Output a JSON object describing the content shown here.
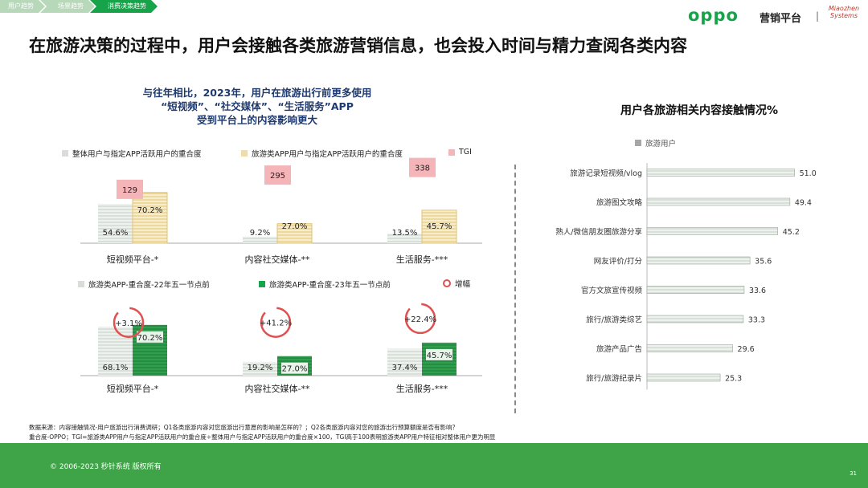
{
  "tabs": [
    "用户趋势",
    "场景趋势",
    "消费决策趋势"
  ],
  "brand": {
    "logo": "oppo",
    "platform": "营销平台",
    "partner": "Miaozhen Systems"
  },
  "title": "在旅游决策的过程中，用户会接触各类旅游营销信息，也会投入时间与精力查阅各类内容",
  "subtitle": [
    "与往年相比，2023年，用户在旅游出行前更多使用",
    "“短视频”、“社交媒体”、“生活服务”APP",
    "受到平台上的内容影响更大"
  ],
  "right_title": "用户各旅游相关内容接触情况%",
  "colors": {
    "green": "#17a34a",
    "tgi": "#f5b5b8",
    "yellow": "#e8c56a",
    "gray": "#bfc9bf",
    "bar_gray": "#a6a6a6",
    "ring": "#e05050"
  },
  "chart_data": [
    {
      "type": "bar",
      "id": "overlap",
      "categories": [
        "短视频平台-*",
        "内容社交媒体-**",
        "生活服务-***"
      ],
      "legend": [
        "整体用户与指定APP活跃用户的重合度",
        "旅游类APP用户与指定APP活跃用户的重合度",
        "TGI"
      ],
      "series": [
        {
          "name": "整体用户与指定APP活跃用户的重合度",
          "values": [
            54.6,
            9.2,
            13.5
          ],
          "labels": [
            "54.6%",
            "9.2%",
            "13.5%"
          ]
        },
        {
          "name": "旅游类APP用户与指定APP活跃用户的重合度",
          "values": [
            70.2,
            27.0,
            45.7
          ],
          "labels": [
            "70.2%",
            "27.0%",
            "45.7%"
          ]
        },
        {
          "name": "TGI",
          "values": [
            129,
            295,
            338
          ],
          "labels": [
            "129",
            "295",
            "338"
          ]
        }
      ]
    },
    {
      "type": "bar",
      "id": "growth",
      "categories": [
        "短视频平台-*",
        "内容社交媒体-**",
        "生活服务-***"
      ],
      "legend": [
        "旅游类APP-重合度-22年五一节点前",
        "旅游类APP-重合度-23年五一节点前",
        "增幅"
      ],
      "series": [
        {
          "name": "旅游类APP-重合度-22年五一节点前",
          "values": [
            68.1,
            19.2,
            37.4
          ],
          "labels": [
            "68.1%",
            "19.2%",
            "37.4%"
          ]
        },
        {
          "name": "旅游类APP-重合度-23年五一节点前",
          "values": [
            70.2,
            27.0,
            45.7
          ],
          "labels": [
            "70.2%",
            "27.0%",
            "45.7%"
          ]
        },
        {
          "name": "增幅",
          "labels": [
            "+3.1%",
            "+41.2%",
            "+22.4%"
          ]
        }
      ]
    },
    {
      "type": "bar",
      "id": "contact",
      "orientation": "horizontal",
      "legend": [
        "旅游用户"
      ],
      "categories": [
        "旅游记录短视频/vlog",
        "旅游图文攻略",
        "熟人/微信朋友圈旅游分享",
        "网友评价/打分",
        "官方文旅宣传视频",
        "旅行/旅游类综艺",
        "旅游产品广告",
        "旅行/旅游纪录片"
      ],
      "values": [
        51.0,
        49.4,
        45.2,
        35.6,
        33.6,
        33.3,
        29.6,
        25.3
      ],
      "labels": [
        "51.0",
        "49.4",
        "45.2",
        "35.6",
        "33.6",
        "33.3",
        "29.6",
        "25.3"
      ]
    }
  ],
  "notes": [
    "数据来源：内容接触情况-用户旅游出行消费调研；Q1各类旅游内容对您旅游出行意愿的影响是怎样的？；Q2各类旅游内容对您的旅游出行预算额度是否有影响？",
    "重合度-OPPO；TGI=旅游类APP用户与指定APP活跃用户的重合度÷整体用户与指定APP活跃用户的重合度×100，TGI高于100表明旅游类APP用户特征相对整体用户更为明显"
  ],
  "footer": {
    "copyright": "© 2006-2023 秒针系统 版权所有",
    "page": "31"
  }
}
